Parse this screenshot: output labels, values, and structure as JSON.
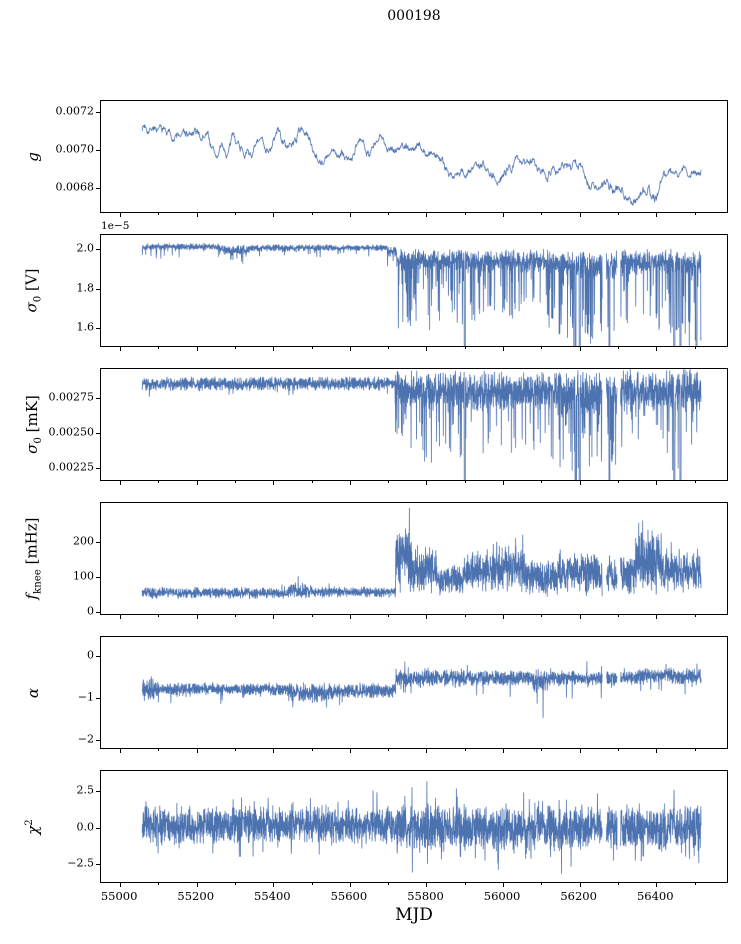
{
  "title": "000198",
  "xlabel": "MJD",
  "chart_data": {
    "type": "line",
    "line_color": "#4c72b0",
    "x_range": [
      54950,
      56590
    ],
    "x_data_range": [
      55058,
      56522
    ],
    "x_ticks": [
      55000,
      55200,
      55400,
      55600,
      55800,
      56000,
      56200,
      56400
    ],
    "x_tick_labels": [
      "55000",
      "55200",
      "55400",
      "55600",
      "55800",
      "56000",
      "56200",
      "56400"
    ],
    "x_minor_step": 100,
    "gaps": [
      [
        56263,
        56274
      ],
      [
        56302,
        56311
      ]
    ],
    "panels": [
      {
        "id": "g",
        "ylabel_parts": [
          {
            "t": "g",
            "style": "italic"
          }
        ],
        "ylim": [
          0.00666,
          0.00726
        ],
        "yticks": [
          0.0068,
          0.007,
          0.0072
        ],
        "ytick_labels": [
          "0.0068",
          "0.0070",
          "0.0072"
        ],
        "model": "smooth",
        "noise": 1.6e-05,
        "seed": 7,
        "anchors": [
          [
            55058,
            0.00712
          ],
          [
            55075,
            0.00714
          ],
          [
            55090,
            0.00717
          ],
          [
            55100,
            0.00711
          ],
          [
            55115,
            0.00708
          ],
          [
            55140,
            0.00707
          ],
          [
            55165,
            0.00708
          ],
          [
            55190,
            0.00706
          ],
          [
            55210,
            0.00704
          ],
          [
            55230,
            0.00707
          ],
          [
            55250,
            0.00695
          ],
          [
            55265,
            0.007
          ],
          [
            55280,
            0.00696
          ],
          [
            55300,
            0.00705
          ],
          [
            55320,
            0.00702
          ],
          [
            55340,
            0.00699
          ],
          [
            55360,
            0.00702
          ],
          [
            55380,
            0.007
          ],
          [
            55400,
            0.00704
          ],
          [
            55415,
            0.0071
          ],
          [
            55430,
            0.00703
          ],
          [
            55445,
            0.007
          ],
          [
            55460,
            0.00705
          ],
          [
            55475,
            0.00712
          ],
          [
            55490,
            0.00708
          ],
          [
            55505,
            0.00701
          ],
          [
            55520,
            0.00699
          ],
          [
            55540,
            0.00698
          ],
          [
            55560,
            0.00697
          ],
          [
            55580,
            0.00695
          ],
          [
            55600,
            0.00693
          ],
          [
            55620,
            0.00698
          ],
          [
            55640,
            0.00701
          ],
          [
            55660,
            0.00702
          ],
          [
            55680,
            0.00703
          ],
          [
            55700,
            0.00703
          ],
          [
            55720,
            0.00704
          ],
          [
            55740,
            0.00703
          ],
          [
            55760,
            0.00703
          ],
          [
            55780,
            0.00701
          ],
          [
            55800,
            0.007
          ],
          [
            55820,
            0.00698
          ],
          [
            55840,
            0.00696
          ],
          [
            55860,
            0.00691
          ],
          [
            55880,
            0.00689
          ],
          [
            55900,
            0.00688
          ],
          [
            55920,
            0.00687
          ],
          [
            55940,
            0.00689
          ],
          [
            55960,
            0.0069
          ],
          [
            55980,
            0.00689
          ],
          [
            56000,
            0.00688
          ],
          [
            56020,
            0.0069
          ],
          [
            56040,
            0.00693
          ],
          [
            56060,
            0.00695
          ],
          [
            56080,
            0.00696
          ],
          [
            56100,
            0.00694
          ],
          [
            56120,
            0.00692
          ],
          [
            56140,
            0.00694
          ],
          [
            56160,
            0.00695
          ],
          [
            56180,
            0.00693
          ],
          [
            56200,
            0.0069
          ],
          [
            56220,
            0.00686
          ],
          [
            56240,
            0.00683
          ],
          [
            56260,
            0.0068
          ],
          [
            56280,
            0.00678
          ],
          [
            56300,
            0.00678
          ],
          [
            56320,
            0.00676
          ],
          [
            56340,
            0.00675
          ],
          [
            56355,
            0.00674
          ],
          [
            56370,
            0.00679
          ],
          [
            56385,
            0.00682
          ],
          [
            56395,
            0.00678
          ],
          [
            56405,
            0.00676
          ],
          [
            56420,
            0.00688
          ],
          [
            56440,
            0.00691
          ],
          [
            56460,
            0.0069
          ],
          [
            56480,
            0.00691
          ],
          [
            56500,
            0.00689
          ],
          [
            56522,
            0.00688
          ]
        ]
      },
      {
        "id": "sigma0_V",
        "offset_text": "1e−5",
        "ylabel_parts": [
          {
            "t": "σ",
            "style": "italic"
          },
          {
            "t": "0",
            "style": "sub"
          },
          {
            "t": " [V]",
            "style": "normal"
          }
        ],
        "ylim": [
          1.5,
          2.07
        ],
        "yticks": [
          1.6,
          1.8,
          2.0
        ],
        "ytick_labels": [
          "1.6",
          "1.8",
          "2.0"
        ],
        "model": "noisy",
        "seed": 12,
        "segments": [
          {
            "x0": 55058,
            "x1": 55260,
            "base": 2.01,
            "noise": 0.013,
            "down_prob": 0.03,
            "down_max": 0.06
          },
          {
            "x0": 55260,
            "x1": 55340,
            "base": 1.995,
            "noise": 0.018,
            "down_prob": 0.05,
            "down_max": 0.07
          },
          {
            "x0": 55340,
            "x1": 55700,
            "base": 2.005,
            "noise": 0.013,
            "down_prob": 0.03,
            "down_max": 0.05
          },
          {
            "x0": 55700,
            "x1": 55725,
            "base": 1.985,
            "noise": 0.02,
            "down_prob": 0.06,
            "down_max": 0.1
          },
          {
            "x0": 55725,
            "x1": 55900,
            "base": 1.94,
            "noise": 0.045,
            "down_prob": 0.18,
            "down_max": 0.35
          },
          {
            "x0": 55900,
            "x1": 56150,
            "base": 1.935,
            "noise": 0.045,
            "down_prob": 0.15,
            "down_max": 0.3
          },
          {
            "x0": 56150,
            "x1": 56220,
            "base": 1.92,
            "noise": 0.055,
            "down_prob": 0.25,
            "down_max": 0.45
          },
          {
            "x0": 56220,
            "x1": 56300,
            "base": 1.91,
            "noise": 0.055,
            "down_prob": 0.2,
            "down_max": 0.4
          },
          {
            "x0": 56300,
            "x1": 56380,
            "base": 1.93,
            "noise": 0.05,
            "down_prob": 0.12,
            "down_max": 0.3
          },
          {
            "x0": 56380,
            "x1": 56522,
            "base": 1.93,
            "noise": 0.05,
            "down_prob": 0.18,
            "down_max": 0.4
          }
        ],
        "dropouts": [
          55903,
          56193,
          56204,
          56282,
          56452,
          56468,
          56510
        ]
      },
      {
        "id": "sigma0_mK",
        "ylabel_parts": [
          {
            "t": "σ",
            "style": "italic"
          },
          {
            "t": "0",
            "style": "sub"
          },
          {
            "t": " [mK]",
            "style": "normal"
          }
        ],
        "ylim": [
          0.00215,
          0.00296
        ],
        "yticks": [
          0.00225,
          0.0025,
          0.00275
        ],
        "ytick_labels": [
          "0.00225",
          "0.00250",
          "0.00275"
        ],
        "model": "noisy",
        "seed": 23,
        "segments": [
          {
            "x0": 55058,
            "x1": 55720,
            "base": 0.002853,
            "noise": 3.8e-05,
            "down_prob": 0.02,
            "down_max": 7e-05
          },
          {
            "x0": 55720,
            "x1": 55900,
            "base": 0.002805,
            "noise": 0.00011,
            "down_prob": 0.14,
            "down_max": 0.0005
          },
          {
            "x0": 55900,
            "x1": 56150,
            "base": 0.0028,
            "noise": 0.00011,
            "down_prob": 0.12,
            "down_max": 0.00045
          },
          {
            "x0": 56150,
            "x1": 56300,
            "base": 0.002785,
            "noise": 0.00013,
            "down_prob": 0.2,
            "down_max": 0.0006
          },
          {
            "x0": 56300,
            "x1": 56420,
            "base": 0.00281,
            "noise": 0.00012,
            "down_prob": 0.12,
            "down_max": 0.0004
          },
          {
            "x0": 56420,
            "x1": 56522,
            "base": 0.0028,
            "noise": 0.00012,
            "down_prob": 0.16,
            "down_max": 0.0005
          }
        ],
        "dropouts": [
          55903,
          56193,
          56204,
          56282,
          56452,
          56468
        ]
      },
      {
        "id": "fknee",
        "ylabel_parts": [
          {
            "t": "f",
            "style": "italic"
          },
          {
            "t": "knee",
            "style": "sub"
          },
          {
            "t": " [mHz]",
            "style": "normal"
          }
        ],
        "ylim": [
          -12,
          312
        ],
        "yticks": [
          0,
          100,
          200
        ],
        "ytick_labels": [
          "0",
          "100",
          "200"
        ],
        "model": "noisy",
        "seed": 34,
        "segments": [
          {
            "x0": 55058,
            "x1": 55440,
            "base": 50,
            "noise": 13,
            "up_prob": 0.02,
            "up_max": 22
          },
          {
            "x0": 55440,
            "x1": 55500,
            "base": 56,
            "noise": 16,
            "up_prob": 0.03,
            "up_max": 25
          },
          {
            "x0": 55500,
            "x1": 55722,
            "base": 52,
            "noise": 12,
            "up_prob": 0.02,
            "up_max": 18
          },
          {
            "x0": 55722,
            "x1": 55765,
            "base": 150,
            "noise": 75,
            "up_prob": 0.1,
            "up_max": 110
          },
          {
            "x0": 55765,
            "x1": 55830,
            "base": 115,
            "noise": 50,
            "up_prob": 0.05,
            "up_max": 60
          },
          {
            "x0": 55830,
            "x1": 55900,
            "base": 85,
            "noise": 35
          },
          {
            "x0": 55900,
            "x1": 55970,
            "base": 110,
            "noise": 45,
            "up_prob": 0.04,
            "up_max": 60
          },
          {
            "x0": 55970,
            "x1": 56060,
            "base": 125,
            "noise": 55,
            "up_prob": 0.05,
            "up_max": 75
          },
          {
            "x0": 56060,
            "x1": 56150,
            "base": 95,
            "noise": 40
          },
          {
            "x0": 56150,
            "x1": 56250,
            "base": 110,
            "noise": 50,
            "up_prob": 0.04,
            "up_max": 60
          },
          {
            "x0": 56250,
            "x1": 56350,
            "base": 100,
            "noise": 45
          },
          {
            "x0": 56350,
            "x1": 56420,
            "base": 140,
            "noise": 70,
            "up_prob": 0.08,
            "up_max": 110
          },
          {
            "x0": 56420,
            "x1": 56522,
            "base": 110,
            "noise": 45,
            "up_prob": 0.03,
            "up_max": 50
          }
        ],
        "dropouts": []
      },
      {
        "id": "alpha",
        "ylabel_parts": [
          {
            "t": "α",
            "style": "italic"
          }
        ],
        "ylim": [
          -2.25,
          0.45
        ],
        "yticks": [
          -2,
          -1,
          0
        ],
        "ytick_labels": [
          "−2",
          "−1",
          "0"
        ],
        "model": "noisy",
        "seed": 45,
        "segments": [
          {
            "x0": 55058,
            "x1": 55100,
            "base": -0.8,
            "noise": 0.22,
            "down_prob": 0.03,
            "down_max": 0.3
          },
          {
            "x0": 55100,
            "x1": 55440,
            "base": -0.82,
            "noise": 0.12,
            "down_prob": 0.02,
            "down_max": 0.3
          },
          {
            "x0": 55440,
            "x1": 55560,
            "base": -0.9,
            "noise": 0.18,
            "down_prob": 0.04,
            "down_max": 0.4
          },
          {
            "x0": 55560,
            "x1": 55722,
            "base": -0.85,
            "noise": 0.14,
            "down_prob": 0.02,
            "down_max": 0.3
          },
          {
            "x0": 55722,
            "x1": 55900,
            "base": -0.55,
            "noise": 0.17,
            "down_prob": 0.04,
            "down_max": 0.5,
            "up_prob": 0.03,
            "up_max": 0.35
          },
          {
            "x0": 55900,
            "x1": 56080,
            "base": -0.55,
            "noise": 0.14,
            "down_prob": 0.03,
            "down_max": 0.4,
            "up_prob": 0.02,
            "up_max": 0.3
          },
          {
            "x0": 56080,
            "x1": 56120,
            "base": -0.62,
            "noise": 0.25,
            "down_prob": 0.05,
            "down_max": 1.3
          },
          {
            "x0": 56120,
            "x1": 56350,
            "base": -0.55,
            "noise": 0.14,
            "down_prob": 0.03,
            "down_max": 0.5,
            "up_prob": 0.03,
            "up_max": 0.3
          },
          {
            "x0": 56350,
            "x1": 56522,
            "base": -0.5,
            "noise": 0.15,
            "down_prob": 0.04,
            "down_max": 0.5,
            "up_prob": 0.04,
            "up_max": 0.3
          }
        ],
        "dropouts": []
      },
      {
        "id": "chi2",
        "ylabel_parts": [
          {
            "t": "χ",
            "style": "italic"
          },
          {
            "t": "2",
            "style": "sup"
          }
        ],
        "ylim": [
          -3.9,
          3.9
        ],
        "yticks": [
          -2.5,
          0.0,
          2.5
        ],
        "ytick_labels": [
          "−2.5",
          "0.0",
          "2.5"
        ],
        "model": "noisy",
        "seed": 56,
        "segments": [
          {
            "x0": 55058,
            "x1": 55722,
            "base": 0.1,
            "noise": 1.0,
            "up_prob": 0.05,
            "up_max": 1.8,
            "down_prob": 0.05,
            "down_max": 1.8
          },
          {
            "x0": 55722,
            "x1": 56522,
            "base": -0.1,
            "noise": 1.25,
            "up_prob": 0.06,
            "up_max": 2.0,
            "down_prob": 0.06,
            "down_max": 2.0
          }
        ],
        "dropouts": []
      }
    ]
  }
}
